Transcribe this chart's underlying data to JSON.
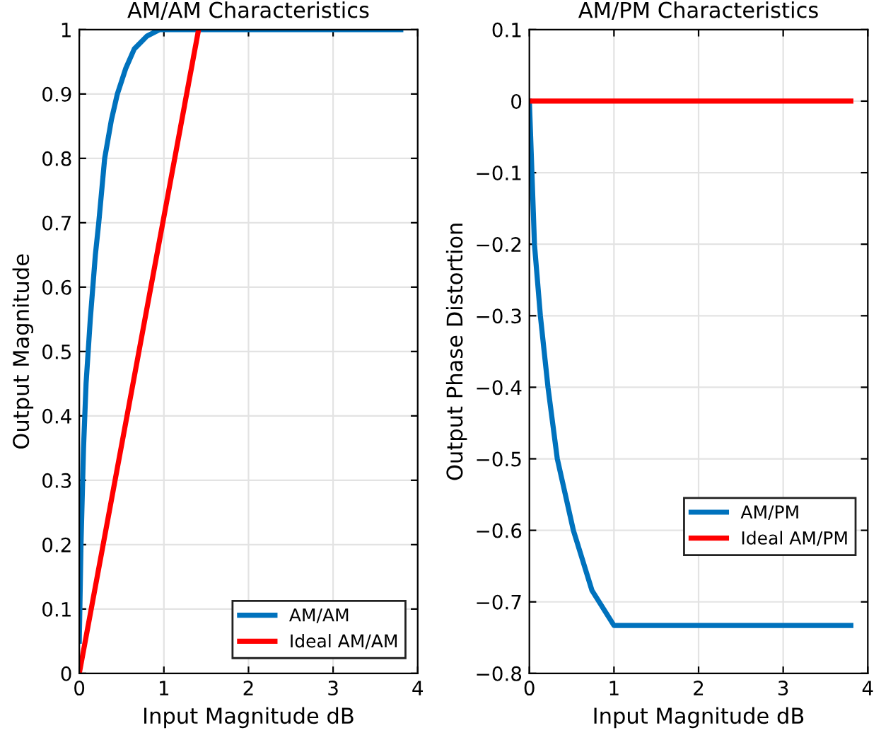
{
  "chart_data": [
    {
      "type": "line",
      "title": "AM/AM Characteristics",
      "xlabel": "Input Magnitude dB",
      "ylabel": "Output Magnitude",
      "xlim": [
        0,
        4
      ],
      "xticks": [
        0,
        1,
        2,
        3,
        4
      ],
      "ylim": [
        0,
        1
      ],
      "yticks": [
        0,
        0.1,
        0.2,
        0.3,
        0.4,
        0.5,
        0.6,
        0.7,
        0.8,
        0.9,
        1
      ],
      "grid": true,
      "legend": "bottom right",
      "line_style": "solid",
      "marker": "none",
      "series": [
        {
          "name": "AM/AM",
          "color": "#0072bd",
          "x": [
            0,
            0.02,
            0.05,
            0.08,
            0.13,
            0.19,
            0.23,
            0.3,
            0.38,
            0.45,
            0.55,
            0.65,
            0.8,
            0.95,
            3.8
          ],
          "values": [
            0.05,
            0.2,
            0.35,
            0.45,
            0.55,
            0.65,
            0.7,
            0.8,
            0.86,
            0.9,
            0.94,
            0.97,
            0.99,
            1,
            1
          ]
        },
        {
          "name": "Ideal AM/AM",
          "color": "#ff0000",
          "x": [
            0,
            1.41
          ],
          "values": [
            0,
            1
          ]
        }
      ]
    },
    {
      "type": "line",
      "title": "AM/PM Characteristics",
      "xlabel": "Input Magnitude dB",
      "ylabel": "Output Phase Distortion",
      "xlim": [
        0,
        4
      ],
      "xticks": [
        0,
        1,
        2,
        3,
        4
      ],
      "ylim": [
        -0.8,
        0.1
      ],
      "yticks": [
        -0.8,
        -0.7,
        -0.6,
        -0.5,
        -0.4,
        -0.3,
        -0.2,
        -0.1,
        0,
        0.1
      ],
      "grid": true,
      "legend": "bottom right",
      "line_style": "solid",
      "marker": "none",
      "series": [
        {
          "name": "AM/PM",
          "color": "#0072bd",
          "x": [
            0,
            0.06,
            0.13,
            0.22,
            0.33,
            0.52,
            0.74,
            1,
            3.8
          ],
          "values": [
            0,
            -0.2,
            -0.3,
            -0.4,
            -0.5,
            -0.6,
            -0.684,
            -0.733,
            -0.733
          ]
        },
        {
          "name": "Ideal AM/PM",
          "color": "#ff0000",
          "x": [
            0,
            3.8
          ],
          "values": [
            0,
            0
          ]
        }
      ]
    }
  ]
}
